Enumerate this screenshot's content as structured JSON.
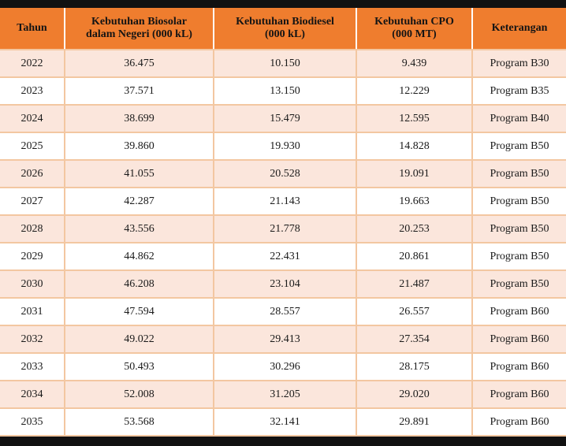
{
  "table": {
    "headers": {
      "tahun": "Tahun",
      "biosolar_line1": "Kebutuhan Biosolar",
      "biosolar_line2": "dalam Negeri (000 kL)",
      "biodiesel_line1": "Kebutuhan Biodiesel",
      "biodiesel_line2": "(000 kL)",
      "cpo_line1": "Kebutuhan CPO",
      "cpo_line2": "(000 MT)",
      "keterangan": "Keterangan"
    },
    "rows": [
      {
        "tahun": "2022",
        "biosolar": "36.475",
        "biodiesel": "10.150",
        "cpo": "9.439",
        "keterangan": "Program B30"
      },
      {
        "tahun": "2023",
        "biosolar": "37.571",
        "biodiesel": "13.150",
        "cpo": "12.229",
        "keterangan": "Program B35"
      },
      {
        "tahun": "2024",
        "biosolar": "38.699",
        "biodiesel": "15.479",
        "cpo": "12.595",
        "keterangan": "Program B40"
      },
      {
        "tahun": "2025",
        "biosolar": "39.860",
        "biodiesel": "19.930",
        "cpo": "14.828",
        "keterangan": "Program B50"
      },
      {
        "tahun": "2026",
        "biosolar": "41.055",
        "biodiesel": "20.528",
        "cpo": "19.091",
        "keterangan": "Program B50"
      },
      {
        "tahun": "2027",
        "biosolar": "42.287",
        "biodiesel": "21.143",
        "cpo": "19.663",
        "keterangan": "Program B50"
      },
      {
        "tahun": "2028",
        "biosolar": "43.556",
        "biodiesel": "21.778",
        "cpo": "20.253",
        "keterangan": "Program B50"
      },
      {
        "tahun": "2029",
        "biosolar": "44.862",
        "biodiesel": "22.431",
        "cpo": "20.861",
        "keterangan": "Program B50"
      },
      {
        "tahun": "2030",
        "biosolar": "46.208",
        "biodiesel": "23.104",
        "cpo": "21.487",
        "keterangan": "Program B50"
      },
      {
        "tahun": "2031",
        "biosolar": "47.594",
        "biodiesel": "28.557",
        "cpo": "26.557",
        "keterangan": "Program B60"
      },
      {
        "tahun": "2032",
        "biosolar": "49.022",
        "biodiesel": "29.413",
        "cpo": "27.354",
        "keterangan": "Program B60"
      },
      {
        "tahun": "2033",
        "biosolar": "50.493",
        "biodiesel": "30.296",
        "cpo": "28.175",
        "keterangan": "Program B60"
      },
      {
        "tahun": "2034",
        "biosolar": "52.008",
        "biodiesel": "31.205",
        "cpo": "29.020",
        "keterangan": "Program B60"
      },
      {
        "tahun": "2035",
        "biosolar": "53.568",
        "biodiesel": "32.141",
        "cpo": "29.891",
        "keterangan": "Program B60"
      }
    ]
  },
  "colors": {
    "header_bg": "#ef7d2e",
    "row_alt_bg": "#fbe6dc",
    "row_bg": "#ffffff",
    "grid_line": "#f3c7a1",
    "frame_bg": "#111111"
  }
}
